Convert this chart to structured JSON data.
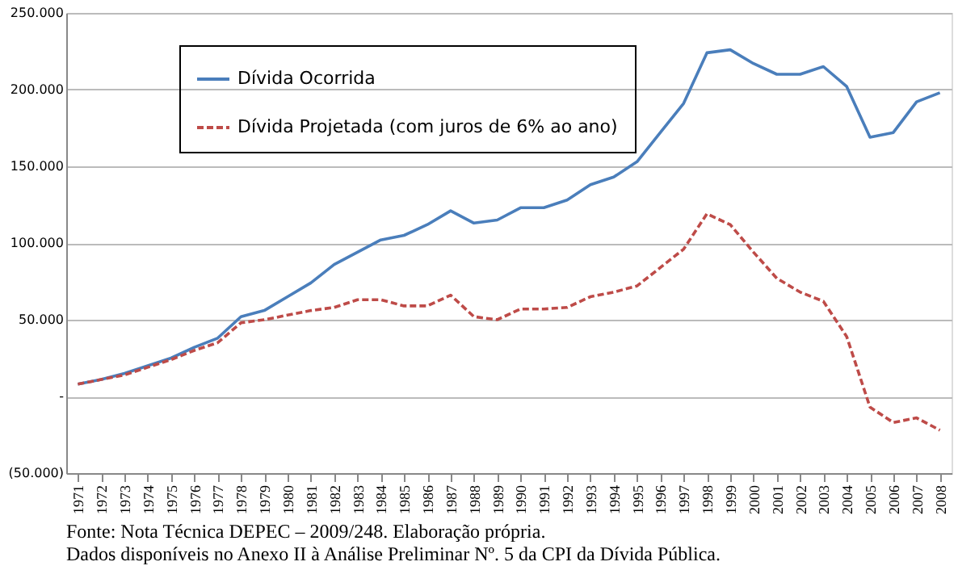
{
  "chart_data": {
    "type": "line",
    "categories": [
      "1971",
      "1972",
      "1973",
      "1974",
      "1975",
      "1976",
      "1977",
      "1978",
      "1979",
      "1980",
      "1981",
      "1982",
      "1983",
      "1984",
      "1985",
      "1986",
      "1987",
      "1988",
      "1989",
      "1990",
      "1991",
      "1992",
      "1993",
      "1994",
      "1995",
      "1996",
      "1997",
      "1998",
      "1999",
      "2000",
      "2001",
      "2002",
      "2003",
      "2004",
      "2005",
      "2006",
      "2007",
      "2008"
    ],
    "series": [
      {
        "name": "Dívida Ocorrida",
        "color": "#4a7ebb",
        "line_style": "solid",
        "values": [
          8000,
          11000,
          15000,
          20000,
          25000,
          32000,
          38000,
          52000,
          56000,
          65000,
          74000,
          86000,
          94000,
          102000,
          105000,
          112000,
          121000,
          113000,
          115000,
          123000,
          123000,
          128000,
          138000,
          143000,
          153000,
          172000,
          191000,
          224000,
          226000,
          217000,
          210000,
          210000,
          215000,
          202000,
          169000,
          172000,
          192000,
          198000
        ]
      },
      {
        "name": "Dívida Projetada (com juros de 6% ao ano)",
        "color": "#be4b48",
        "line_style": "dashed",
        "values": [
          8000,
          11000,
          14000,
          19000,
          24000,
          30000,
          35000,
          48000,
          50000,
          53000,
          56000,
          58000,
          63000,
          63000,
          59000,
          59000,
          66000,
          52000,
          50000,
          57000,
          57000,
          58000,
          65000,
          68000,
          72000,
          84000,
          96000,
          119000,
          112000,
          94000,
          77000,
          68000,
          62000,
          39000,
          -7000,
          -17000,
          -14000,
          -22000
        ]
      }
    ],
    "ylim": [
      -50000,
      250000
    ],
    "yticks": [
      {
        "value": -50000,
        "label": "(50.000)"
      },
      {
        "value": 0,
        "label": "-"
      },
      {
        "value": 50000,
        "label": "50.000"
      },
      {
        "value": 100000,
        "label": "100.000"
      },
      {
        "value": 150000,
        "label": "150.000"
      },
      {
        "value": 200000,
        "label": "200.000"
      },
      {
        "value": 250000,
        "label": "250.000"
      }
    ],
    "grid": "y",
    "legend": "top left",
    "marker": "none",
    "annotations": [
      "Fonte: Nota Técnica DEPEC – 2009/248. Elaboração própria.",
      "Dados disponíveis no Anexo II à Análise Preliminar Nº. 5 da CPI da Dívida Pública."
    ]
  }
}
